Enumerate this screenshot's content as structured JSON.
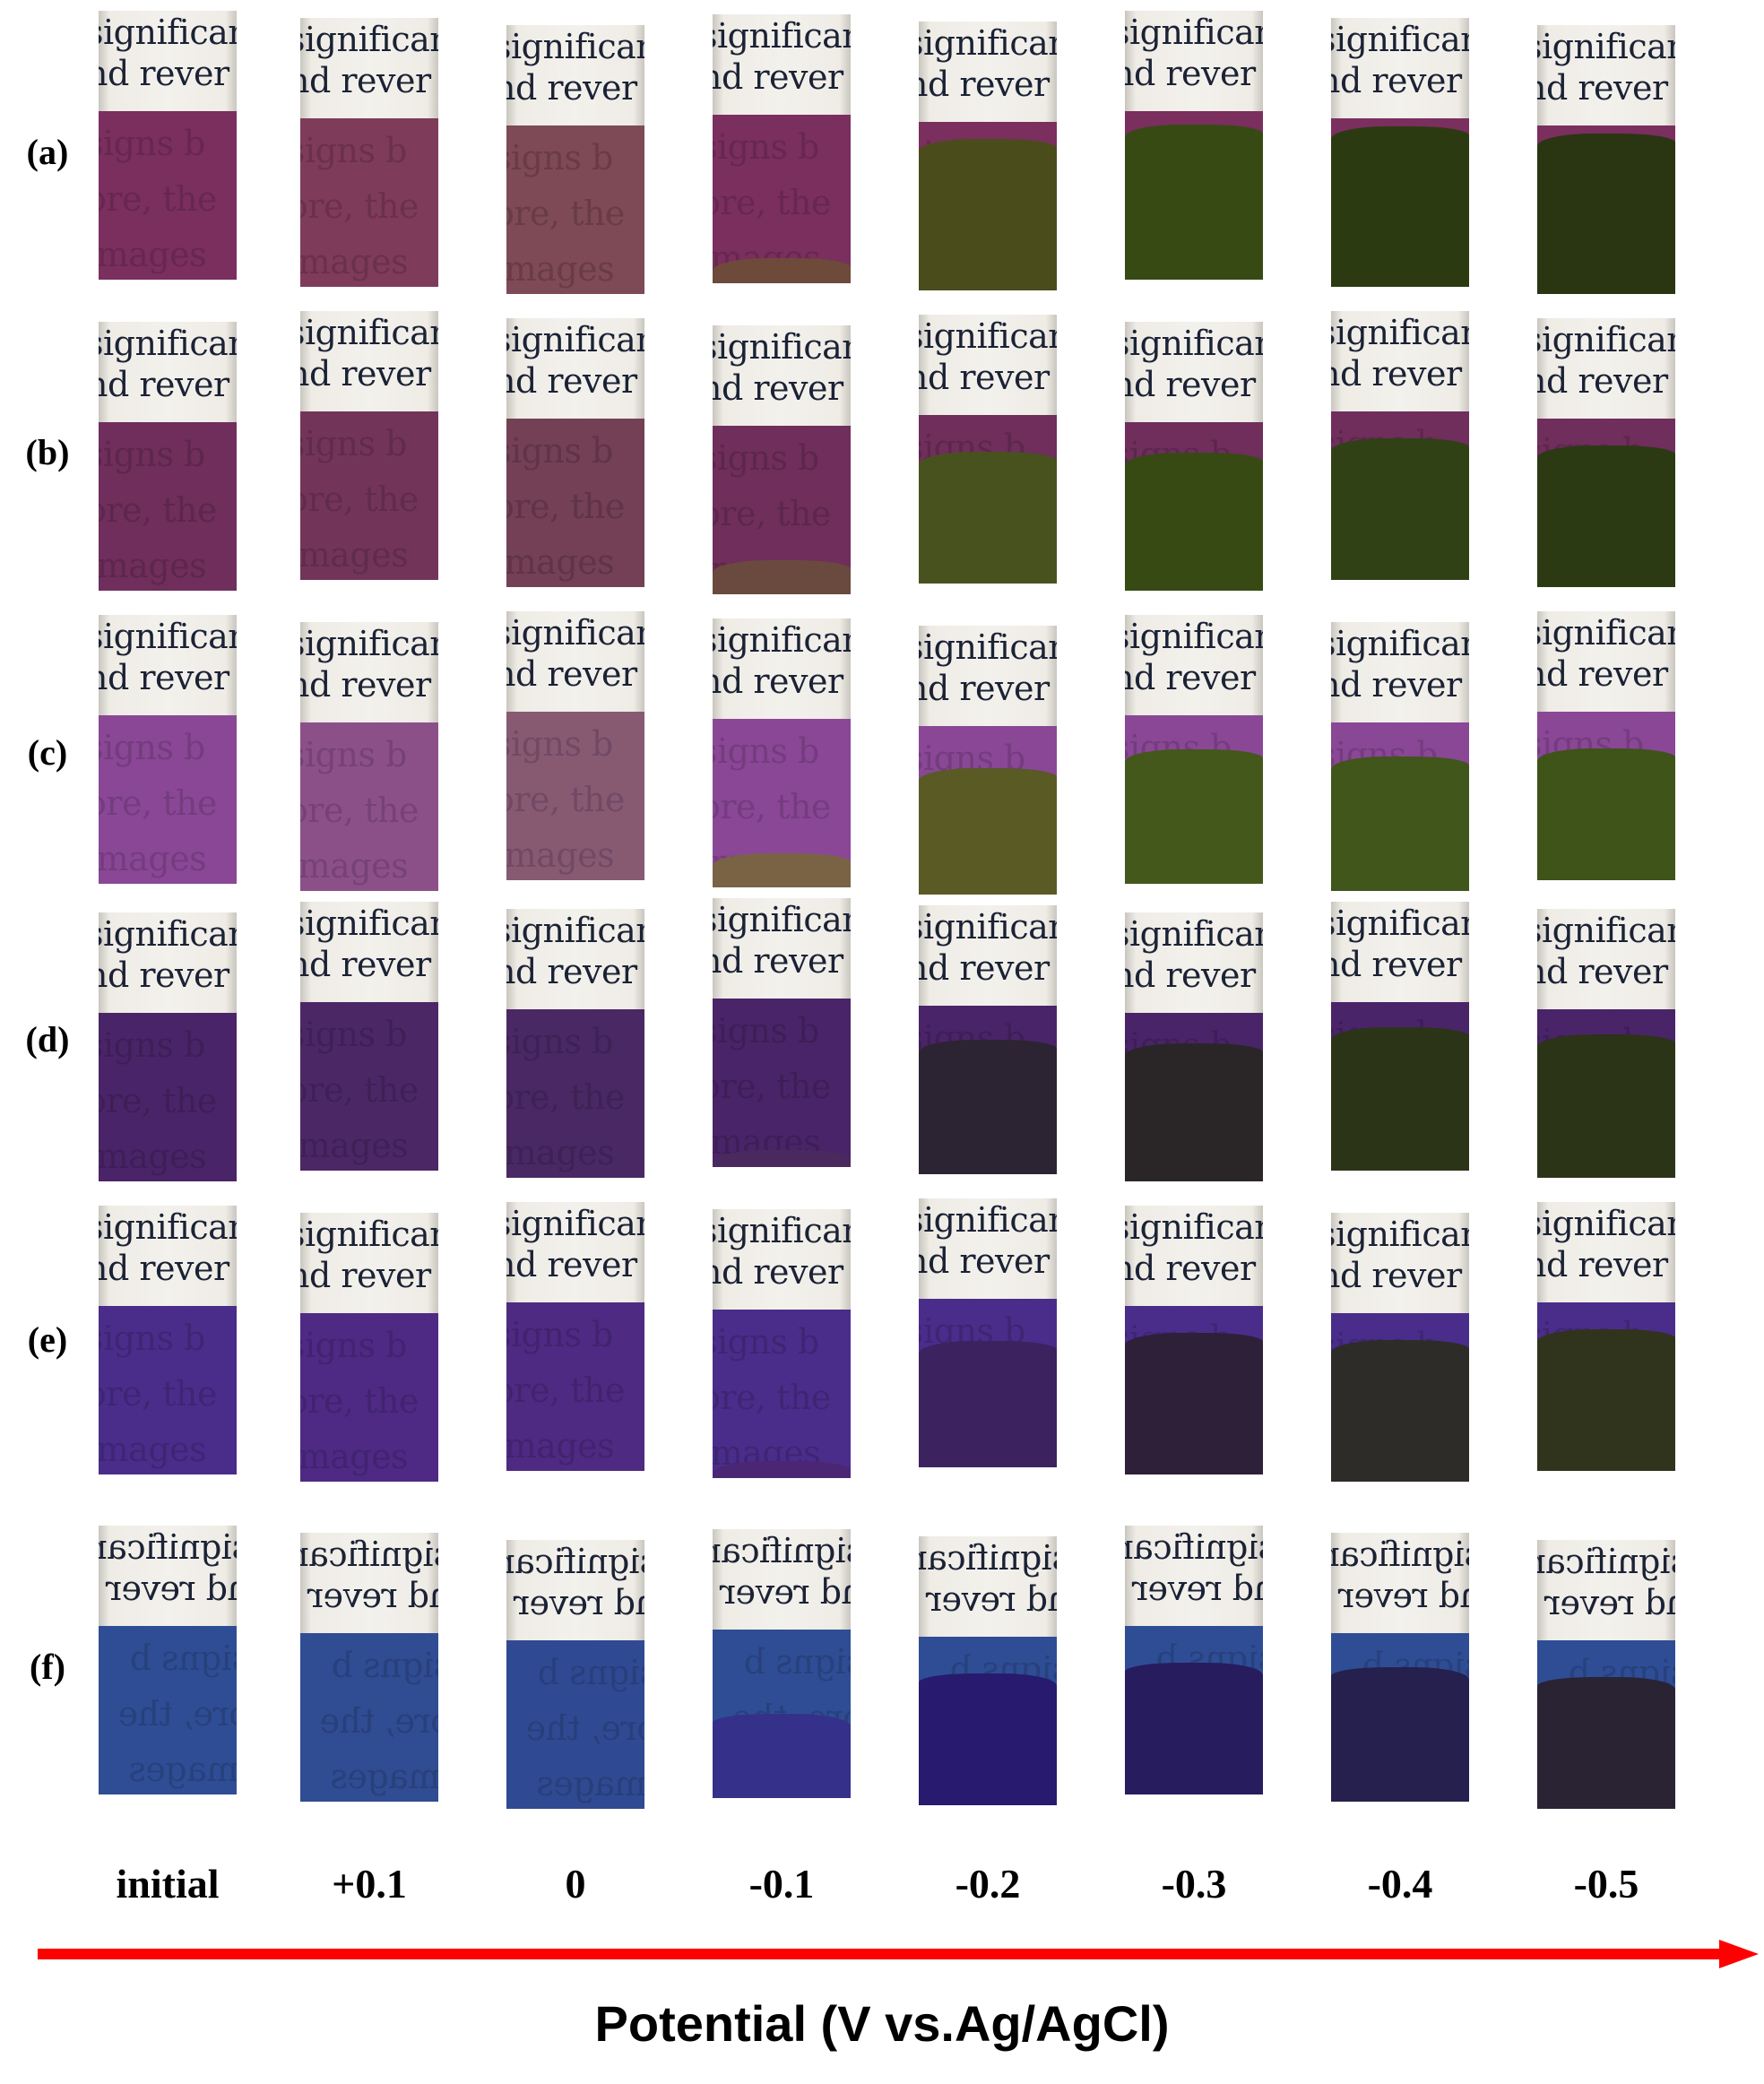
{
  "rows": [
    {
      "label": "(a)",
      "base": "#7a2f5e",
      "dark_colors": [
        "#7a2f5e",
        "#7f3b5a",
        "#7d4a55",
        "#6d4a3a",
        "#4a4c1c",
        "#374a14",
        "#2c3a12",
        "#2a3512"
      ],
      "dark_frac": [
        0,
        0,
        0,
        0.15,
        0.9,
        0.92,
        0.95,
        0.95
      ]
    },
    {
      "label": "(b)",
      "base": "#6f2e5c",
      "dark_colors": [
        "#6f2e5c",
        "#73345a",
        "#734055",
        "#6a4a3e",
        "#48521f",
        "#374a14",
        "#304215",
        "#2c3a14"
      ],
      "dark_frac": [
        0,
        0,
        0,
        0.2,
        0.78,
        0.82,
        0.84,
        0.84
      ]
    },
    {
      "label": "(c)",
      "base": "#8a4796",
      "dark_colors": [
        "#8a4796",
        "#8c5089",
        "#875a72",
        "#7a6344",
        "#5a5a24",
        "#43581a",
        "#40561a",
        "#3e5418"
      ],
      "dark_frac": [
        0,
        0,
        0,
        0.2,
        0.75,
        0.8,
        0.8,
        0.78
      ]
    },
    {
      "label": "(d)",
      "base": "#4a2468",
      "dark_colors": [
        "#4a2468",
        "#4c2766",
        "#4a2864",
        "#4a2a5e",
        "#2c2432",
        "#2a2628",
        "#2c3418",
        "#2c3418"
      ],
      "dark_frac": [
        0,
        0,
        0,
        0.1,
        0.8,
        0.82,
        0.85,
        0.85
      ]
    },
    {
      "label": "(e)",
      "base": "#4a2d8a",
      "dark_colors": [
        "#4a2d8a",
        "#4e2a84",
        "#4e2a82",
        "#4a2674",
        "#3d2260",
        "#2e2038",
        "#2e2c28",
        "#30341c"
      ],
      "dark_frac": [
        0,
        0,
        0,
        0.1,
        0.75,
        0.84,
        0.84,
        0.84
      ]
    },
    {
      "label": "(f)",
      "base": "#2f4d95",
      "dark_colors": [
        "#2f4d95",
        "#304c92",
        "#2f4a92",
        "#35318a",
        "#281a6e",
        "#271c5e",
        "#26204e",
        "#2a2334"
      ],
      "dark_frac": [
        0,
        0,
        0,
        0.5,
        0.78,
        0.78,
        0.8,
        0.78
      ]
    }
  ],
  "paper_text": [
    "significan",
    "nd rever",
    "signs b",
    "ore, the",
    "images"
  ],
  "axis": {
    "ticks": [
      "initial",
      "+0.1",
      "0",
      "-0.1",
      "-0.2",
      "-0.3",
      "-0.4",
      "-0.5"
    ],
    "title": "Potential (V vs.Ag/AgCl)",
    "arrow_color": "#ff0000"
  }
}
